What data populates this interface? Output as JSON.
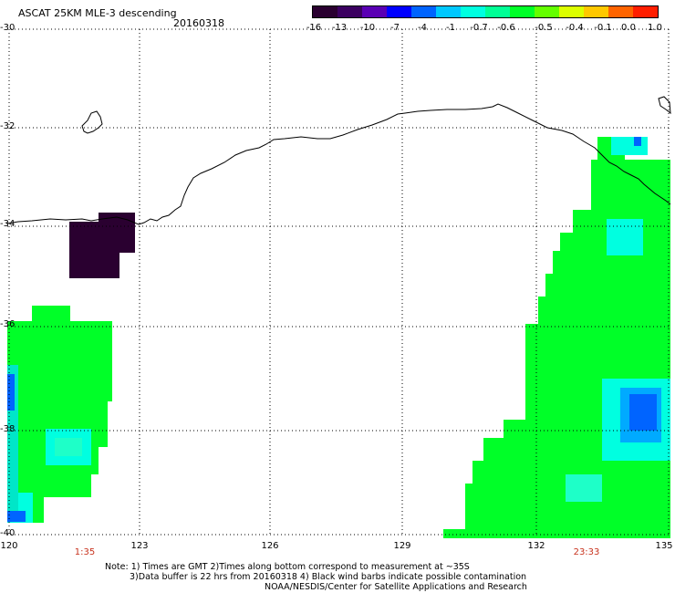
{
  "header": {
    "title": "ASCAT 25KM MLE-3 descending",
    "date": "20160318"
  },
  "colorbar": {
    "labels": [
      "-16",
      "-13",
      "-10",
      "-7",
      "-4",
      "-1",
      "-0.7",
      "-0.6",
      "-0.5",
      "-0.4",
      "-0.1",
      "0.0",
      "1.0"
    ],
    "colors": [
      "#2a0030",
      "#3b0060",
      "#5a00b4",
      "#0000ff",
      "#0064ff",
      "#00c8ff",
      "#00ffe0",
      "#00ff96",
      "#00ff28",
      "#64ff00",
      "#dcff00",
      "#ffc800",
      "#ff6400",
      "#ff1e00"
    ]
  },
  "axes": {
    "lat_labels": [
      "-30",
      "-32",
      "-34",
      "-36",
      "-38",
      "-40"
    ],
    "lon_labels": [
      "120",
      "123",
      "126",
      "129",
      "132",
      "135"
    ]
  },
  "times": {
    "left": "1:35",
    "right": "23:33"
  },
  "notes": {
    "line1": "Note: 1) Times are GMT 2)Times along bottom correspond to measurement at ~35S",
    "line2": "3)Data buffer is 22 hrs from 20160318 4) Black wind barbs indicate possible contamination",
    "line3": "NOAA/NESDIS/Center for Satellite Applications and Research"
  },
  "colors": {
    "green": "#00ff28",
    "cyan": "#00ffe0",
    "blue": "#0064ff",
    "purple": "#2a0030",
    "time_red": "#c8331e"
  }
}
